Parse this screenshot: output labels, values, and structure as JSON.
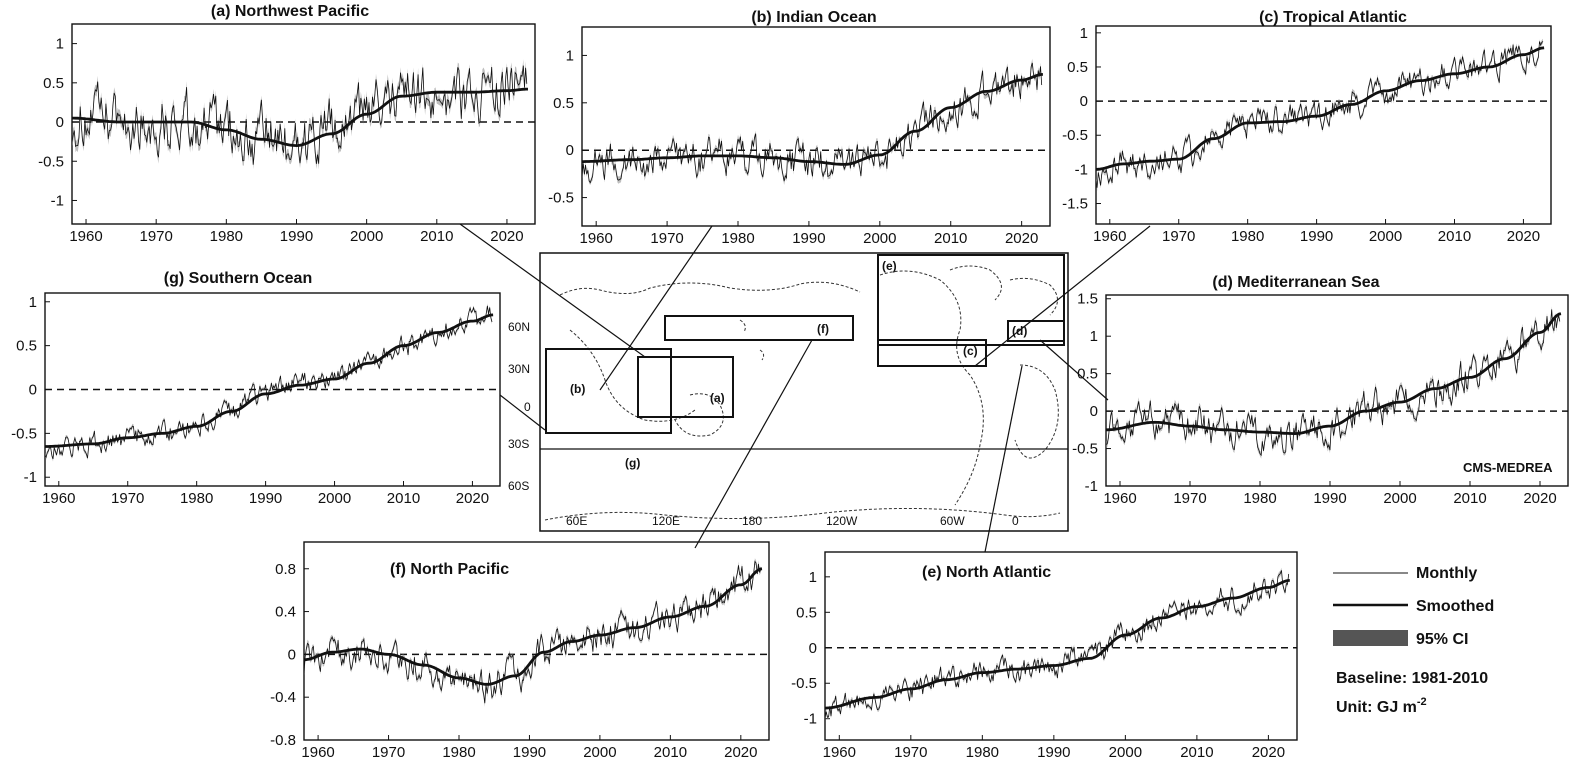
{
  "chart_data": [
    {
      "id": "a",
      "type": "line",
      "title": "(a) Northwest Pacific",
      "xlim": [
        1958,
        2024
      ],
      "ylim": [
        -1.3,
        1.25
      ],
      "xticks": [
        "1960",
        "1970",
        "1980",
        "1990",
        "2000",
        "2010",
        "2020"
      ],
      "yticks": [
        "1",
        "0.5",
        "0",
        "-0.5",
        "-1"
      ],
      "smoothed": {
        "x": [
          1958,
          1965,
          1970,
          1975,
          1980,
          1985,
          1990,
          1995,
          2000,
          2005,
          2010,
          2015,
          2020,
          2023
        ],
        "y": [
          0.05,
          0.0,
          0.0,
          0.0,
          -0.1,
          -0.22,
          -0.3,
          -0.15,
          0.1,
          0.33,
          0.38,
          0.38,
          0.4,
          0.42
        ]
      },
      "monthly_amplitude": 0.38
    },
    {
      "id": "b",
      "type": "line",
      "title": "(b) Indian Ocean",
      "xlim": [
        1958,
        2024
      ],
      "ylim": [
        -0.8,
        1.3
      ],
      "xticks": [
        "1960",
        "1970",
        "1980",
        "1990",
        "2000",
        "2010",
        "2020"
      ],
      "yticks": [
        "1",
        "0.5",
        "0",
        "-0.5"
      ],
      "smoothed": {
        "x": [
          1958,
          1965,
          1970,
          1975,
          1980,
          1985,
          1990,
          1995,
          2000,
          2005,
          2010,
          2015,
          2020,
          2023
        ],
        "y": [
          -0.12,
          -0.1,
          -0.08,
          -0.06,
          -0.06,
          -0.08,
          -0.12,
          -0.15,
          -0.05,
          0.2,
          0.45,
          0.62,
          0.74,
          0.8
        ]
      },
      "monthly_amplitude": 0.2
    },
    {
      "id": "c",
      "type": "line",
      "title": "(c) Tropical Atlantic",
      "xlim": [
        1958,
        2024
      ],
      "ylim": [
        -1.8,
        1.1
      ],
      "xticks": [
        "1960",
        "1970",
        "1980",
        "1990",
        "2000",
        "2010",
        "2020"
      ],
      "yticks": [
        "1",
        "0.5",
        "0",
        "-0.5",
        "-1",
        "-1.5"
      ],
      "smoothed": {
        "x": [
          1958,
          1962,
          1966,
          1970,
          1975,
          1980,
          1985,
          1990,
          1995,
          2000,
          2005,
          2010,
          2015,
          2020,
          2023
        ],
        "y": [
          -1.0,
          -0.92,
          -0.88,
          -0.85,
          -0.55,
          -0.32,
          -0.3,
          -0.22,
          -0.05,
          0.15,
          0.3,
          0.4,
          0.5,
          0.68,
          0.78
        ]
      },
      "monthly_amplitude": 0.22
    },
    {
      "id": "d",
      "type": "line",
      "title": "(d) Mediterranean Sea",
      "annotation": "CMS-MEDREA",
      "xlim": [
        1958,
        2024
      ],
      "ylim": [
        -1.0,
        1.55
      ],
      "xticks": [
        "1960",
        "1970",
        "1980",
        "1990",
        "2000",
        "2010",
        "2020"
      ],
      "yticks": [
        "1.5",
        "1",
        "0.5",
        "0",
        "-0.5",
        "-1"
      ],
      "smoothed": {
        "x": [
          1958,
          1965,
          1970,
          1975,
          1980,
          1985,
          1990,
          1995,
          2000,
          2005,
          2010,
          2015,
          2020,
          2023
        ],
        "y": [
          -0.25,
          -0.15,
          -0.2,
          -0.25,
          -0.28,
          -0.3,
          -0.2,
          0.0,
          0.12,
          0.3,
          0.45,
          0.7,
          1.05,
          1.3
        ]
      },
      "monthly_amplitude": 0.25
    },
    {
      "id": "e",
      "type": "line",
      "title": "(e) North Atlantic",
      "xlim": [
        1958,
        2024
      ],
      "ylim": [
        -1.3,
        1.35
      ],
      "xticks": [
        "1960",
        "1970",
        "1980",
        "1990",
        "2000",
        "2010",
        "2020"
      ],
      "yticks": [
        "1",
        "0.5",
        "0",
        "-0.5",
        "-1"
      ],
      "smoothed": {
        "x": [
          1958,
          1965,
          1970,
          1975,
          1980,
          1985,
          1990,
          1995,
          2000,
          2005,
          2010,
          2015,
          2020,
          2023
        ],
        "y": [
          -0.85,
          -0.7,
          -0.58,
          -0.45,
          -0.35,
          -0.3,
          -0.25,
          -0.15,
          0.18,
          0.42,
          0.58,
          0.7,
          0.85,
          0.95
        ]
      },
      "monthly_amplitude": 0.18
    },
    {
      "id": "f",
      "type": "line",
      "title": "(f) North Pacific",
      "xlim": [
        1958,
        2024
      ],
      "ylim": [
        -0.8,
        1.05
      ],
      "xticks": [
        "1960",
        "1970",
        "1980",
        "1990",
        "2000",
        "2010",
        "2020"
      ],
      "yticks": [
        "0.8",
        "0.4",
        "0",
        "-0.4",
        "-0.8"
      ],
      "smoothed": {
        "x": [
          1958,
          1962,
          1966,
          1970,
          1975,
          1980,
          1984,
          1988,
          1992,
          1996,
          2000,
          2005,
          2010,
          2015,
          2020,
          2023
        ],
        "y": [
          -0.05,
          0.02,
          0.05,
          0.0,
          -0.1,
          -0.22,
          -0.28,
          -0.2,
          0.02,
          0.12,
          0.18,
          0.25,
          0.35,
          0.45,
          0.65,
          0.8
        ]
      },
      "monthly_amplitude": 0.16
    },
    {
      "id": "g",
      "type": "line",
      "title": "(g) Southern Ocean",
      "xlim": [
        1958,
        2024
      ],
      "ylim": [
        -1.1,
        1.1
      ],
      "xticks": [
        "1960",
        "1970",
        "1980",
        "1990",
        "2000",
        "2010",
        "2020"
      ],
      "yticks": [
        "1",
        "0.5",
        "0",
        "-0.5",
        "-1"
      ],
      "smoothed": {
        "x": [
          1958,
          1965,
          1970,
          1975,
          1980,
          1985,
          1990,
          1995,
          2000,
          2005,
          2010,
          2015,
          2020,
          2023
        ],
        "y": [
          -0.65,
          -0.62,
          -0.55,
          -0.5,
          -0.42,
          -0.25,
          -0.05,
          0.05,
          0.12,
          0.3,
          0.5,
          0.65,
          0.78,
          0.85
        ]
      },
      "monthly_amplitude": 0.13
    }
  ],
  "map": {
    "lat_labels": [
      "60N",
      "30N",
      "0",
      "30S",
      "60S"
    ],
    "lon_labels": [
      "60E",
      "120E",
      "180",
      "120W",
      "60W",
      "0"
    ],
    "region_tags": [
      "(a)",
      "(b)",
      "(c)",
      "(d)",
      "(e)",
      "(f)",
      "(g)"
    ]
  },
  "legend": {
    "monthly": "Monthly",
    "smoothed": "Smoothed",
    "ci": "95% CI",
    "baseline": "Baseline: 1981-2010",
    "unit_prefix": "Unit: GJ m",
    "unit_exp": "-2"
  },
  "colors": {
    "line": "#111111",
    "ci": "#8a8a8a",
    "baseline": "#111111"
  }
}
